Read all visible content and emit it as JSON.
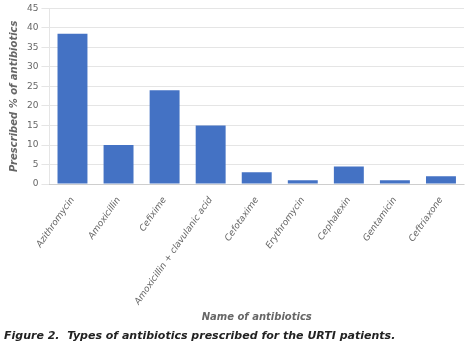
{
  "chart_data": {
    "type": "bar",
    "title": "Figure 2.  Types of antibiotics prescribed for the URTI patients.",
    "xlabel": "Name of antibiotics",
    "ylabel": "Prescribed % of antibiotics",
    "categories": [
      "Azithromycin",
      "Amoxicillin",
      "Cefixime",
      "Amoxicillin + clavulanic acid",
      "Cefotaxime",
      "Erythromycin",
      "Cephalexin",
      "Gentamicin",
      "Ceftriaxone"
    ],
    "values": [
      38.5,
      10,
      24,
      15,
      3,
      1,
      4.5,
      1,
      2
    ],
    "color": "#4472C4",
    "ylim": [
      0,
      45
    ],
    "yticks": [
      0,
      5,
      10,
      15,
      20,
      25,
      30,
      35,
      40,
      45
    ],
    "grid": true
  }
}
